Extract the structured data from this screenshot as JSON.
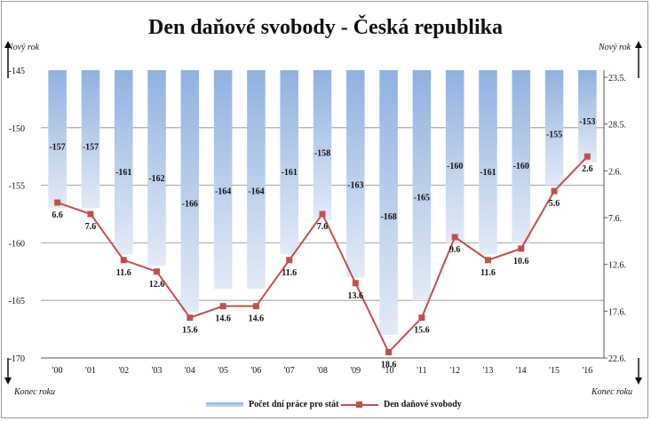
{
  "chart_data": {
    "type": "bar",
    "title": "Den daňové svobody - Česká republika",
    "categories": [
      "'00",
      "'01",
      "'02",
      "'03",
      "'04",
      "'05",
      "'06",
      "'07",
      "'08",
      "'09",
      "'10",
      "'11",
      "'12",
      "'13",
      "'14",
      "'15",
      "'16"
    ],
    "series": [
      {
        "name": "Počet dní práce pro stát",
        "type": "bar",
        "axis": "left",
        "values": [
          -157,
          -157,
          -161,
          -162,
          -166,
          -164,
          -164,
          -161,
          -158,
          -163,
          -168,
          -165,
          -160,
          -161,
          -160,
          -155,
          -153
        ],
        "labels": [
          "-157",
          "-157",
          "-161",
          "-162",
          "-166",
          "-164",
          "-164",
          "-161",
          "-158",
          "-163",
          "-168",
          "-165",
          "-160",
          "-161",
          "-160",
          "-155",
          "-153"
        ]
      },
      {
        "name": "Den daňové svobody",
        "type": "line",
        "axis": "right",
        "values": [
          -156.5,
          -157.5,
          -161.5,
          -162.5,
          -166.5,
          -165.5,
          -165.5,
          -161.5,
          -157.5,
          -163.5,
          -169.5,
          -166.5,
          -159.5,
          -161.5,
          -160.5,
          -155.5,
          -152.5
        ],
        "labels": [
          "6.6",
          "7.6",
          "11.6",
          "12.6",
          "15.6",
          "14.6",
          "14.6",
          "11.6",
          "7.6",
          "13.6",
          "18.6",
          "15.6",
          "9.6",
          "11.6",
          "10.6",
          "5.6",
          "2.6"
        ]
      }
    ],
    "y_left": {
      "min": -170,
      "max": -145,
      "ticks": [
        "-145",
        "-150",
        "-155",
        "-160",
        "-165",
        "-170"
      ]
    },
    "y_right": {
      "ticks": [
        "23.5.",
        "28.5.",
        "2.6.",
        "7.6.",
        "12.6.",
        "17.6.",
        "22.6."
      ]
    },
    "grid": true,
    "legend_position": "bottom",
    "corner_labels": {
      "top_left": "Nový rok",
      "top_right": "Nový rok",
      "bottom_left": "Konec roku",
      "bottom_right": "Konec roku"
    },
    "colors": {
      "bar_top": "#8fb1e0",
      "bar_bottom": "#dfe8f6",
      "line": "#c0504d",
      "grid": "#8c8c8c"
    }
  }
}
